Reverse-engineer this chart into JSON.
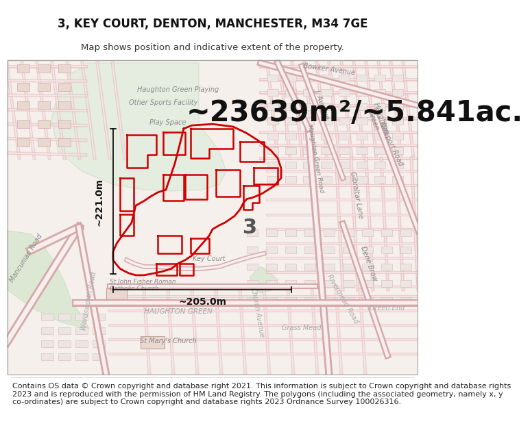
{
  "title": "3, KEY COURT, DENTON, MANCHESTER, M34 7GE",
  "subtitle": "Map shows position and indicative extent of the property.",
  "area_text": "~23639m²/~5.841ac.",
  "dim_horizontal": "~205.0m",
  "dim_vertical": "~221.0m",
  "label_number": "3",
  "footer": "Contains OS data © Crown copyright and database right 2021. This information is subject to Crown copyright and database rights 2023 and is reproduced with the permission of HM Land Registry. The polygons (including the associated geometry, namely x, y co-ordinates) are subject to Crown copyright and database rights 2023 Ordnance Survey 100026316.",
  "bg_color": "#f7f3ef",
  "green_color": "#e0ece0",
  "green2_color": "#dce8d8",
  "road_outline": "#e8c8c8",
  "road_fill": "#ffffff",
  "building_outline": "#d9b8b8",
  "building_fill": "#ede0dc",
  "highlight_color": "#cc0000",
  "title_fontsize": 12,
  "subtitle_fontsize": 9.5,
  "area_fontsize": 30,
  "footer_fontsize": 8,
  "dim_fontsize": 10,
  "label_fontsize": 22,
  "map_text_color": "#666666",
  "map_text_size": 7
}
